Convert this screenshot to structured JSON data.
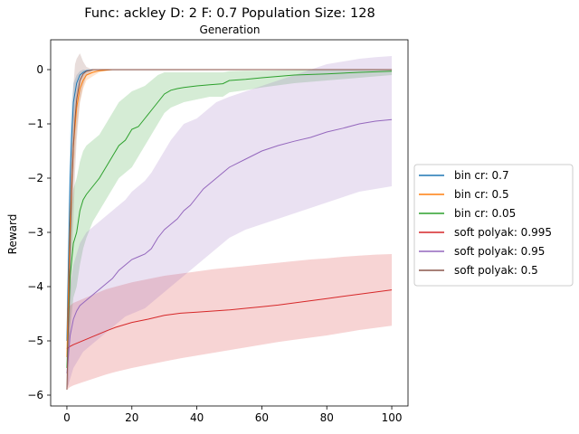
{
  "chart_data": {
    "type": "line",
    "title": "Func: ackley D: 2 F: 0.7 Population Size: 128",
    "subtitle": "Generation",
    "xlabel": "",
    "ylabel": "Reward",
    "xlim": [
      -5,
      105
    ],
    "ylim": [
      -6.2,
      0.55
    ],
    "xticks": [
      0,
      20,
      40,
      60,
      80,
      100
    ],
    "yticks": [
      0,
      -1,
      -2,
      -3,
      -4,
      -5,
      -6
    ],
    "grid": false,
    "legend_position": "center-right-outside",
    "series": [
      {
        "name": "bin cr: 0.7",
        "color": "#1f77b4",
        "x": [
          0,
          0.5,
          1,
          1.5,
          2,
          3,
          4,
          5,
          6,
          8,
          10,
          100
        ],
        "mean": [
          -5.0,
          -3.5,
          -2.0,
          -1.2,
          -0.6,
          -0.25,
          -0.1,
          -0.05,
          -0.02,
          0,
          0,
          0
        ],
        "lower": [
          -5.5,
          -4.2,
          -2.9,
          -1.8,
          -1.0,
          -0.45,
          -0.2,
          -0.1,
          -0.05,
          -0.01,
          0,
          0
        ],
        "upper": [
          -4.3,
          -2.5,
          -1.2,
          -0.6,
          -0.25,
          -0.1,
          -0.03,
          0,
          0,
          0,
          0,
          0
        ]
      },
      {
        "name": "bin cr: 0.5",
        "color": "#ff7f0e",
        "x": [
          0,
          0.5,
          1,
          2,
          3,
          4,
          5,
          6,
          8,
          10,
          14,
          100
        ],
        "mean": [
          -5.3,
          -4.0,
          -2.8,
          -1.4,
          -0.7,
          -0.35,
          -0.2,
          -0.1,
          -0.05,
          -0.02,
          0,
          0
        ],
        "lower": [
          -5.7,
          -4.7,
          -3.6,
          -2.0,
          -1.1,
          -0.6,
          -0.35,
          -0.2,
          -0.12,
          -0.05,
          0,
          0
        ],
        "upper": [
          -4.8,
          -3.3,
          -2.0,
          -0.9,
          -0.4,
          -0.2,
          -0.1,
          -0.05,
          0,
          0,
          0,
          0
        ]
      },
      {
        "name": "bin cr: 0.05",
        "color": "#2ca02c",
        "x": [
          0,
          1,
          2,
          3,
          4,
          5,
          6,
          8,
          10,
          12,
          14,
          16,
          18,
          20,
          22,
          24,
          26,
          28,
          30,
          32,
          34,
          36,
          40,
          44,
          48,
          50,
          55,
          60,
          70,
          80,
          90,
          100
        ],
        "mean": [
          -5.5,
          -3.8,
          -3.2,
          -3.0,
          -2.6,
          -2.4,
          -2.3,
          -2.15,
          -2.0,
          -1.8,
          -1.6,
          -1.4,
          -1.3,
          -1.1,
          -1.05,
          -0.9,
          -0.75,
          -0.6,
          -0.45,
          -0.38,
          -0.35,
          -0.33,
          -0.3,
          -0.28,
          -0.26,
          -0.2,
          -0.18,
          -0.15,
          -0.1,
          -0.08,
          -0.05,
          -0.03
        ],
        "lower": [
          -5.9,
          -4.8,
          -4.2,
          -4.0,
          -3.6,
          -3.3,
          -3.1,
          -2.8,
          -2.6,
          -2.4,
          -2.2,
          -2.0,
          -1.9,
          -1.8,
          -1.6,
          -1.4,
          -1.2,
          -1.0,
          -0.8,
          -0.7,
          -0.65,
          -0.6,
          -0.55,
          -0.5,
          -0.5,
          -0.42,
          -0.38,
          -0.33,
          -0.25,
          -0.2,
          -0.15,
          -0.1
        ],
        "upper": [
          -5.0,
          -2.8,
          -2.2,
          -2.0,
          -1.7,
          -1.5,
          -1.4,
          -1.3,
          -1.2,
          -1.0,
          -0.8,
          -0.6,
          -0.5,
          -0.4,
          -0.35,
          -0.3,
          -0.2,
          -0.1,
          -0.05,
          -0.05,
          -0.05,
          -0.05,
          -0.05,
          -0.05,
          -0.05,
          -0.03,
          -0.02,
          -0.02,
          -0.01,
          0,
          0,
          0
        ]
      },
      {
        "name": "soft polyak: 0.995",
        "color": "#d62728",
        "x": [
          0,
          1,
          2,
          4,
          6,
          8,
          10,
          12,
          15,
          20,
          25,
          30,
          35,
          40,
          45,
          50,
          55,
          60,
          65,
          70,
          75,
          80,
          85,
          90,
          95,
          100
        ],
        "mean": [
          -5.15,
          -5.1,
          -5.07,
          -5.02,
          -4.97,
          -4.92,
          -4.87,
          -4.82,
          -4.75,
          -4.66,
          -4.6,
          -4.53,
          -4.49,
          -4.47,
          -4.45,
          -4.43,
          -4.4,
          -4.37,
          -4.34,
          -4.3,
          -4.26,
          -4.22,
          -4.18,
          -4.14,
          -4.1,
          -4.06
        ],
        "lower": [
          -5.9,
          -5.85,
          -5.82,
          -5.78,
          -5.74,
          -5.7,
          -5.66,
          -5.62,
          -5.57,
          -5.5,
          -5.44,
          -5.38,
          -5.32,
          -5.27,
          -5.22,
          -5.17,
          -5.12,
          -5.07,
          -5.02,
          -4.98,
          -4.94,
          -4.9,
          -4.85,
          -4.8,
          -4.76,
          -4.72
        ],
        "upper": [
          -4.4,
          -4.35,
          -4.3,
          -4.25,
          -4.2,
          -4.15,
          -4.1,
          -4.05,
          -4.0,
          -3.92,
          -3.86,
          -3.8,
          -3.76,
          -3.72,
          -3.68,
          -3.65,
          -3.62,
          -3.59,
          -3.56,
          -3.53,
          -3.5,
          -3.48,
          -3.45,
          -3.43,
          -3.41,
          -3.4
        ]
      },
      {
        "name": "soft polyak: 0.95",
        "color": "#9467bd",
        "x": [
          0,
          1,
          2,
          3,
          4,
          5,
          6,
          8,
          10,
          12,
          14,
          16,
          18,
          20,
          22,
          24,
          26,
          28,
          30,
          32,
          34,
          36,
          38,
          40,
          42,
          44,
          46,
          48,
          50,
          55,
          60,
          65,
          70,
          75,
          80,
          85,
          90,
          95,
          100
        ],
        "mean": [
          -5.6,
          -4.9,
          -4.6,
          -4.45,
          -4.35,
          -4.3,
          -4.25,
          -4.15,
          -4.05,
          -3.95,
          -3.85,
          -3.7,
          -3.6,
          -3.5,
          -3.45,
          -3.4,
          -3.3,
          -3.1,
          -2.95,
          -2.85,
          -2.75,
          -2.6,
          -2.5,
          -2.35,
          -2.2,
          -2.1,
          -2.0,
          -1.9,
          -1.8,
          -1.65,
          -1.5,
          -1.4,
          -1.32,
          -1.25,
          -1.15,
          -1.08,
          -1.0,
          -0.95,
          -0.92
        ],
        "lower": [
          -5.9,
          -5.7,
          -5.5,
          -5.4,
          -5.3,
          -5.2,
          -5.15,
          -5.05,
          -4.95,
          -4.85,
          -4.75,
          -4.65,
          -4.55,
          -4.5,
          -4.45,
          -4.4,
          -4.3,
          -4.2,
          -4.1,
          -4.0,
          -3.9,
          -3.8,
          -3.7,
          -3.6,
          -3.5,
          -3.4,
          -3.3,
          -3.2,
          -3.1,
          -2.95,
          -2.85,
          -2.75,
          -2.65,
          -2.55,
          -2.45,
          -2.35,
          -2.25,
          -2.2,
          -2.15
        ],
        "upper": [
          -5.2,
          -4.0,
          -3.6,
          -3.4,
          -3.2,
          -3.1,
          -3.0,
          -2.9,
          -2.8,
          -2.7,
          -2.6,
          -2.5,
          -2.4,
          -2.25,
          -2.15,
          -2.05,
          -1.9,
          -1.7,
          -1.5,
          -1.3,
          -1.15,
          -1.0,
          -0.95,
          -0.9,
          -0.8,
          -0.7,
          -0.6,
          -0.55,
          -0.5,
          -0.4,
          -0.3,
          -0.2,
          -0.1,
          0.0,
          0.1,
          0.15,
          0.2,
          0.23,
          0.25
        ]
      },
      {
        "name": "soft polyak: 0.5",
        "color": "#8c564b",
        "x": [
          0,
          0.5,
          1,
          1.5,
          2,
          2.5,
          3,
          4,
          5,
          6,
          8,
          100
        ],
        "mean": [
          -5.9,
          -4.5,
          -3.2,
          -2.2,
          -1.4,
          -0.9,
          -0.55,
          -0.2,
          -0.08,
          -0.03,
          0,
          0
        ],
        "lower": [
          -5.9,
          -5.8,
          -4.6,
          -3.6,
          -2.8,
          -1.9,
          -1.3,
          -0.6,
          -0.3,
          -0.12,
          -0.02,
          0
        ],
        "upper": [
          -5.5,
          -3.4,
          -2.0,
          -1.0,
          -0.3,
          0.1,
          0.2,
          0.3,
          0.15,
          0.05,
          0,
          0
        ]
      }
    ]
  }
}
